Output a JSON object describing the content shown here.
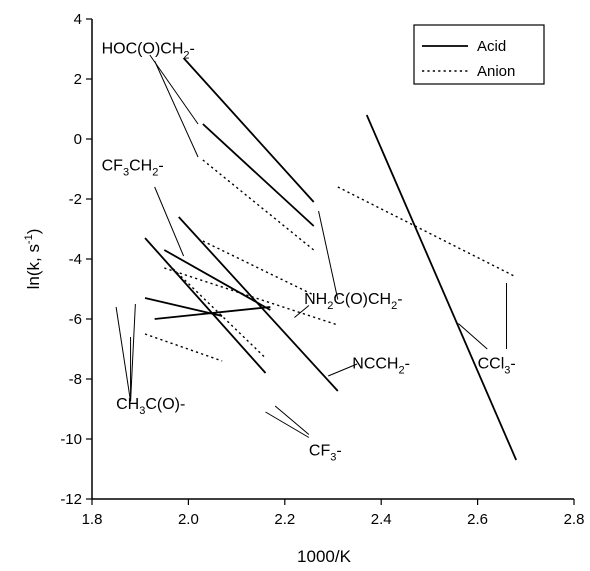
{
  "chart_data": {
    "type": "line",
    "xlabel": "1000/K",
    "ylabel": "ln(k, s",
    "ylabel_sup": "-1",
    "ylabel_end": ")",
    "xlim": [
      1.8,
      2.8
    ],
    "ylim": [
      -12,
      4
    ],
    "xticks": [
      "1.8",
      "2.0",
      "2.2",
      "2.4",
      "2.6",
      "2.8"
    ],
    "xtick_values": [
      1.8,
      2.0,
      2.2,
      2.4,
      2.6,
      2.8
    ],
    "yticks": [
      "4",
      "2",
      "0",
      "-2",
      "-4",
      "-6",
      "-8",
      "-10",
      "-12"
    ],
    "ytick_values": [
      4,
      2,
      0,
      -2,
      -4,
      -6,
      -8,
      -10,
      -12
    ],
    "legend": {
      "placement": "top-right",
      "entries": [
        {
          "label": "Acid",
          "style": "solid"
        },
        {
          "label": "Anion",
          "style": "dotted"
        }
      ]
    },
    "segments": [
      {
        "style": "solid",
        "x": [
          1.99,
          2.26
        ],
        "y": [
          2.7,
          -2.1
        ]
      },
      {
        "style": "solid",
        "x": [
          2.03,
          2.26
        ],
        "y": [
          0.5,
          -2.9
        ]
      },
      {
        "style": "dotted",
        "x": [
          2.03,
          2.26
        ],
        "y": [
          -0.7,
          -3.7
        ]
      },
      {
        "style": "solid",
        "x": [
          1.91,
          2.16
        ],
        "y": [
          -3.3,
          -7.8
        ]
      },
      {
        "style": "solid",
        "x": [
          1.98,
          2.31
        ],
        "y": [
          -2.6,
          -8.4
        ]
      },
      {
        "style": "solid",
        "x": [
          1.95,
          2.17
        ],
        "y": [
          -3.7,
          -5.7
        ]
      },
      {
        "style": "solid",
        "x": [
          1.93,
          2.17
        ],
        "y": [
          -6.0,
          -5.6
        ]
      },
      {
        "style": "solid",
        "x": [
          1.91,
          2.07
        ],
        "y": [
          -5.3,
          -5.9
        ]
      },
      {
        "style": "dotted",
        "x": [
          1.91,
          2.07
        ],
        "y": [
          -6.5,
          -7.4
        ]
      },
      {
        "style": "dotted",
        "x": [
          1.96,
          2.16
        ],
        "y": [
          -4.2,
          -7.3
        ]
      },
      {
        "style": "dotted",
        "x": [
          1.95,
          2.31
        ],
        "y": [
          -4.3,
          -6.2
        ]
      },
      {
        "style": "dotted",
        "x": [
          2.03,
          2.26
        ],
        "y": [
          -3.4,
          -5.2
        ]
      },
      {
        "style": "solid",
        "x": [
          2.37,
          2.68
        ],
        "y": [
          0.8,
          -10.7
        ]
      },
      {
        "style": "dotted",
        "x": [
          2.31,
          2.68
        ],
        "y": [
          -1.6,
          -4.6
        ]
      }
    ],
    "annotations": [
      {
        "name": "hoc-label",
        "parts": [
          {
            "t": "HOC(O)CH"
          },
          {
            "t": "2",
            "sub": true
          },
          {
            "t": "-"
          }
        ],
        "x": 1.82,
        "y": 2.85
      },
      {
        "name": "cf3ch2-label",
        "parts": [
          {
            "t": "CF"
          },
          {
            "t": "3",
            "sub": true
          },
          {
            "t": "CH"
          },
          {
            "t": "2",
            "sub": true
          },
          {
            "t": "-"
          }
        ],
        "x": 1.82,
        "y": -1.05
      },
      {
        "name": "nh2-label",
        "parts": [
          {
            "t": "NH"
          },
          {
            "t": "2",
            "sub": true
          },
          {
            "t": "C(O)CH"
          },
          {
            "t": "2",
            "sub": true
          },
          {
            "t": "-"
          }
        ],
        "x": 2.24,
        "y": -5.5
      },
      {
        "name": "ncch2-label",
        "parts": [
          {
            "t": "NCCH"
          },
          {
            "t": "2",
            "sub": true
          },
          {
            "t": "-"
          }
        ],
        "x": 2.34,
        "y": -7.65
      },
      {
        "name": "ccl3-label",
        "parts": [
          {
            "t": "CCl"
          },
          {
            "t": "3",
            "sub": true
          },
          {
            "t": "-"
          }
        ],
        "x": 2.6,
        "y": -7.65
      },
      {
        "name": "ch3co-label",
        "parts": [
          {
            "t": "CH"
          },
          {
            "t": "3",
            "sub": true
          },
          {
            "t": "C(O)-"
          }
        ],
        "x": 1.85,
        "y": -9.0
      },
      {
        "name": "cf3-label",
        "parts": [
          {
            "t": "CF"
          },
          {
            "t": "3",
            "sub": true
          },
          {
            "t": "-"
          }
        ],
        "x": 2.25,
        "y": -10.55
      }
    ],
    "leaders": [
      {
        "x": [
          1.92,
          2.02
        ],
        "y": [
          2.8,
          0.5
        ]
      },
      {
        "x": [
          1.93,
          2.02
        ],
        "y": [
          2.6,
          -0.6
        ]
      },
      {
        "x": [
          1.93,
          1.99
        ],
        "y": [
          -1.6,
          -3.9
        ]
      },
      {
        "x": [
          2.27,
          2.31
        ],
        "y": [
          -2.4,
          -5.35
        ]
      },
      {
        "x": [
          2.22,
          2.25
        ],
        "y": [
          -5.95,
          -5.55
        ]
      },
      {
        "x": [
          2.29,
          2.35
        ],
        "y": [
          -7.9,
          -7.5
        ]
      },
      {
        "x": [
          2.66,
          2.66
        ],
        "y": [
          -4.8,
          -7.0
        ]
      },
      {
        "x": [
          2.56,
          2.62
        ],
        "y": [
          -6.15,
          -7.0
        ]
      },
      {
        "x": [
          1.88,
          1.89
        ],
        "y": [
          -8.75,
          -5.5
        ]
      },
      {
        "x": [
          1.88,
          1.85
        ],
        "y": [
          -8.75,
          -5.6
        ]
      },
      {
        "x": [
          1.88,
          1.88
        ],
        "y": [
          -8.75,
          -6.6
        ]
      },
      {
        "x": [
          2.18,
          2.25
        ],
        "y": [
          -8.9,
          -9.85
        ]
      },
      {
        "x": [
          2.16,
          2.25
        ],
        "y": [
          -9.1,
          -9.95
        ]
      }
    ]
  }
}
